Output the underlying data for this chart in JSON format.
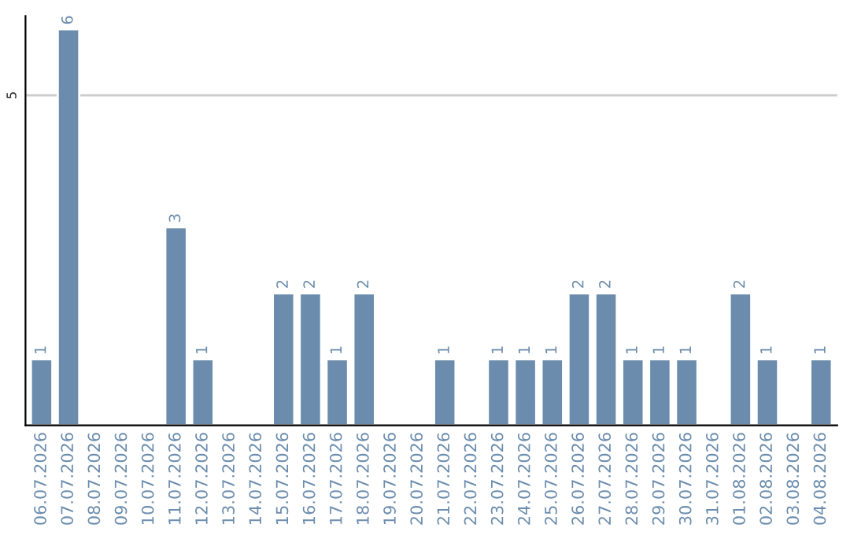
{
  "chart_data": {
    "type": "bar",
    "categories": [
      "06.07.2026",
      "07.07.2026",
      "08.07.2026",
      "09.07.2026",
      "10.07.2026",
      "11.07.2026",
      "12.07.2026",
      "13.07.2026",
      "14.07.2026",
      "15.07.2026",
      "16.07.2026",
      "17.07.2026",
      "18.07.2026",
      "19.07.2026",
      "20.07.2026",
      "21.07.2026",
      "22.07.2026",
      "23.07.2026",
      "24.07.2026",
      "25.07.2026",
      "26.07.2026",
      "27.07.2026",
      "28.07.2026",
      "29.07.2026",
      "30.07.2026",
      "31.07.2026",
      "01.08.2026",
      "02.08.2026",
      "03.08.2026",
      "04.08.2026"
    ],
    "values": [
      1,
      6,
      0,
      0,
      0,
      3,
      1,
      0,
      0,
      2,
      2,
      1,
      2,
      0,
      0,
      1,
      0,
      1,
      1,
      1,
      2,
      2,
      1,
      1,
      1,
      0,
      2,
      1,
      0,
      1
    ],
    "value_labels": [
      "1",
      "6",
      null,
      null,
      null,
      "3",
      "1",
      null,
      null,
      "2",
      "2",
      "1",
      "2",
      null,
      null,
      "1",
      null,
      "1",
      "1",
      "1",
      "2",
      "2",
      "1",
      "1",
      "1",
      null,
      "2",
      "1",
      null,
      "1"
    ],
    "color": "#6b8cad",
    "ylim": [
      0,
      6.2
    ],
    "yticks": [
      5
    ],
    "grid": "y",
    "legend": false
  }
}
